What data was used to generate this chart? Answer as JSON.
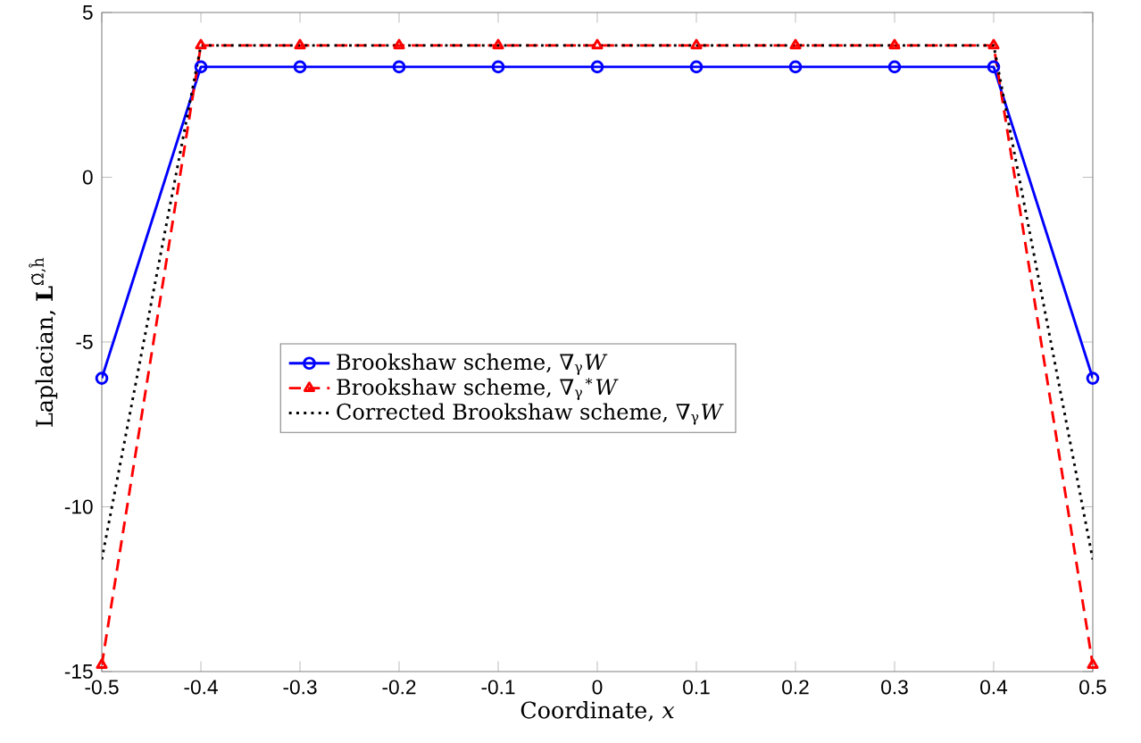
{
  "chart_data": {
    "type": "line",
    "xlabel": "Coordinate, *x*",
    "ylabel": "Laplacian, **L**$^{Ω̃,ĥ}$",
    "x": [
      -0.5,
      -0.4,
      -0.3,
      -0.2,
      -0.1,
      0,
      0.1,
      0.2,
      0.3,
      0.4,
      0.5
    ],
    "series": [
      {
        "name": "Brookshaw scheme, ∇$_{γ}$*W*",
        "color": "#0000ff",
        "marker": "circle",
        "line_style": "solid",
        "values": [
          -6.1,
          3.35,
          3.35,
          3.35,
          3.35,
          3.35,
          3.35,
          3.35,
          3.35,
          3.35,
          -6.1
        ]
      },
      {
        "name": "Brookshaw scheme, ∇$_{γ}$$^{∗}$*W*",
        "color": "#ff0000",
        "marker": "triangle",
        "line_style": "dashed",
        "values": [
          -14.8,
          4,
          4,
          4,
          4,
          4,
          4,
          4,
          4,
          4,
          -14.8
        ]
      },
      {
        "name": "Corrected Brookshaw scheme, ∇$_{γ}$*W*",
        "color": "#000000",
        "marker": "none",
        "line_style": "dotted",
        "values": [
          -11.6,
          4,
          4,
          4,
          4,
          4,
          4,
          4,
          4,
          4,
          -11.6
        ]
      }
    ],
    "xlim": [
      -0.5,
      0.5
    ],
    "ylim": [
      -15,
      5
    ],
    "xticks": [
      -0.5,
      -0.4,
      -0.3,
      -0.2,
      -0.1,
      0,
      0.1,
      0.2,
      0.3,
      0.4,
      0.5
    ],
    "yticks": [
      -15,
      -10,
      -5,
      0,
      5
    ],
    "grid": false,
    "legend": "center"
  }
}
